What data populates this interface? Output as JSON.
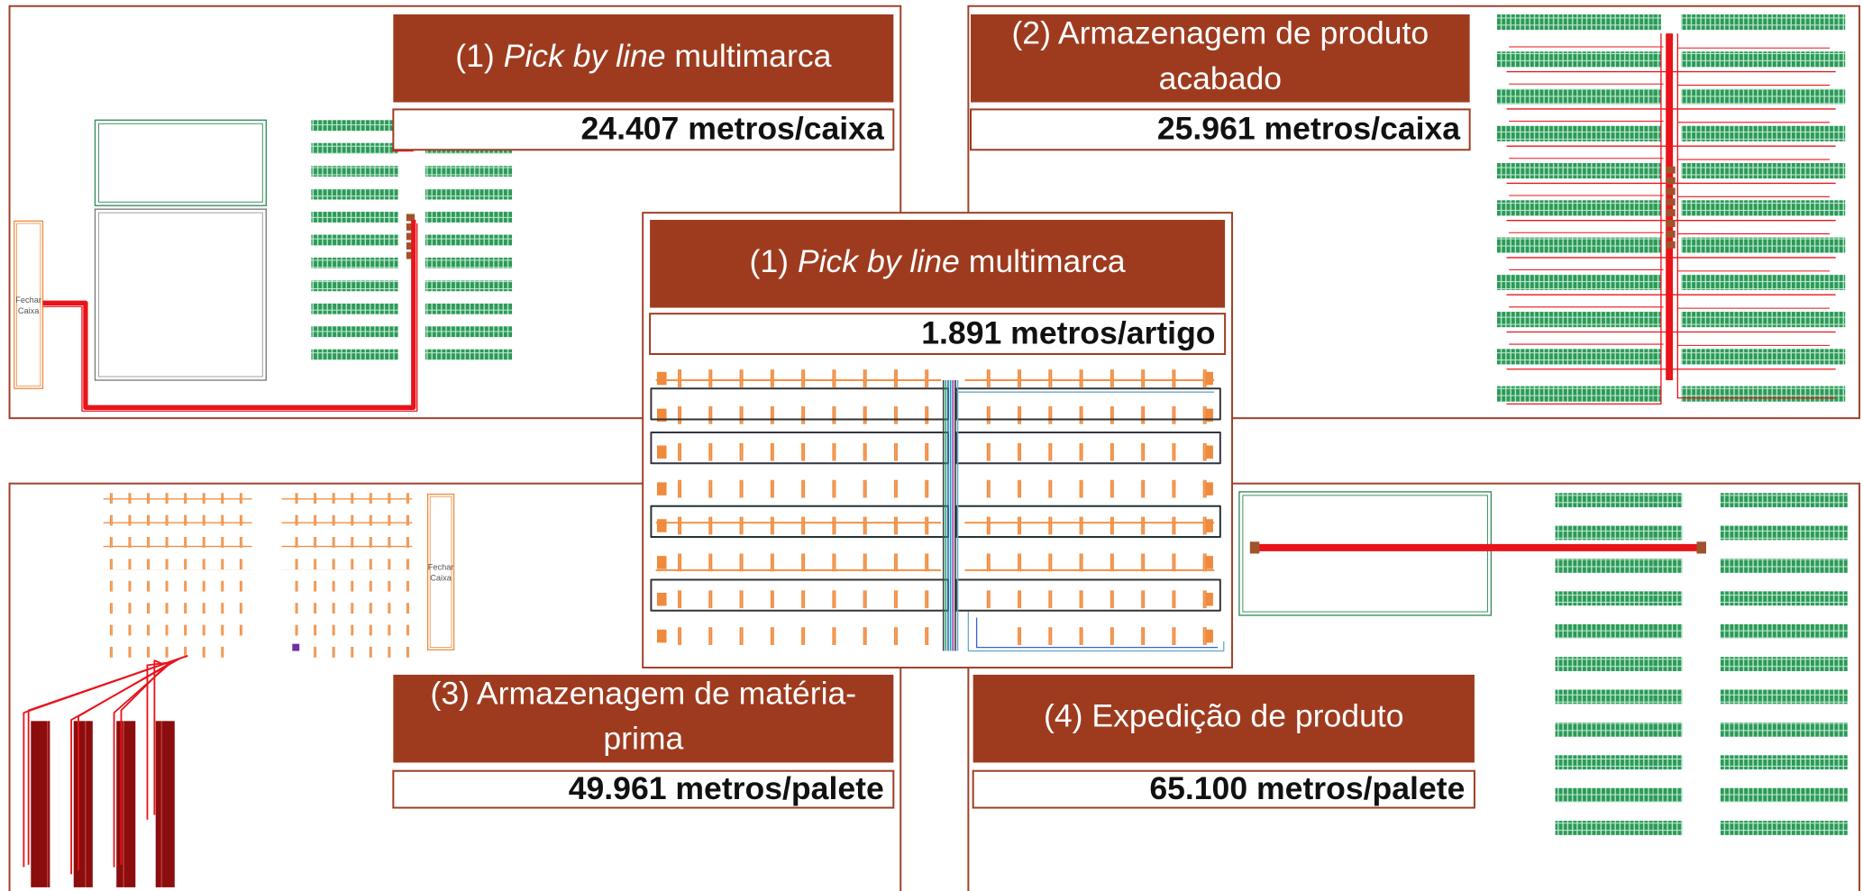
{
  "panels": [
    {
      "title_lines": [
        [
          {
            "text": "(1) "
          },
          {
            "text": "Pick by line",
            "italic": true
          },
          {
            "text": " multimarca"
          }
        ]
      ],
      "metric": "24.407 metros/caixa",
      "close_box_label": [
        "Fechar",
        "Caixa"
      ]
    },
    {
      "title_lines": [
        [
          {
            "text": "(2) Armazenagem de produto"
          }
        ],
        [
          {
            "text": "acabado"
          }
        ]
      ],
      "metric": "25.961 metros/caixa"
    },
    {
      "title_lines": [
        [
          {
            "text": "(1) "
          },
          {
            "text": "Pick by line",
            "italic": true
          },
          {
            "text": " multimarca"
          }
        ]
      ],
      "metric": "1.891 metros/artigo"
    },
    {
      "title_lines": [
        [
          {
            "text": "(3) Armazenagem de matéria-"
          }
        ],
        [
          {
            "text": "prima"
          }
        ]
      ],
      "metric": "49.961 metros/palete",
      "close_box_label": [
        "Fechar",
        "Caixa"
      ]
    },
    {
      "title_lines": [
        [
          {
            "text": "(4) Expedição de produto"
          }
        ]
      ],
      "metric": "65.100 metros/palete"
    }
  ]
}
